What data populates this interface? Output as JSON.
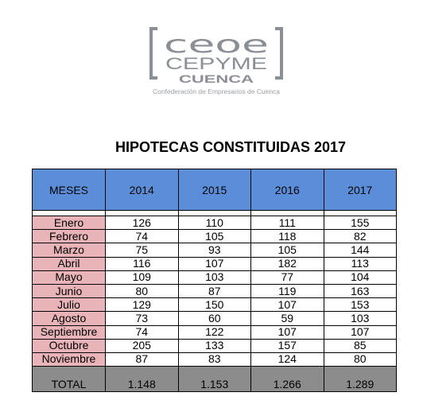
{
  "logo": {
    "brand_top": "CEOE",
    "brand_mid": "CEPYME",
    "brand_bottom": "CUENCA",
    "tagline": "Confederación de Empresarios de Cuenca",
    "color": "#8a8f96"
  },
  "title": "HIPOTECAS CONSTITUIDAS 2017",
  "table": {
    "headers": [
      "MESES",
      "2014",
      "2015",
      "2016",
      "2017"
    ],
    "rows": [
      {
        "month": "Enero",
        "values": [
          "126",
          "110",
          "111",
          "155"
        ]
      },
      {
        "month": "Febrero",
        "values": [
          "74",
          "105",
          "118",
          "82"
        ]
      },
      {
        "month": "Marzo",
        "values": [
          "75",
          "93",
          "105",
          "144"
        ]
      },
      {
        "month": "Abril",
        "values": [
          "116",
          "107",
          "182",
          "113"
        ]
      },
      {
        "month": "Mayo",
        "values": [
          "109",
          "103",
          "77",
          "104"
        ]
      },
      {
        "month": "Junio",
        "values": [
          "80",
          "87",
          "119",
          "163"
        ]
      },
      {
        "month": "Julio",
        "values": [
          "129",
          "150",
          "107",
          "153"
        ]
      },
      {
        "month": "Agosto",
        "values": [
          "73",
          "60",
          "59",
          "103"
        ]
      },
      {
        "month": "Septiembre",
        "values": [
          "74",
          "122",
          "107",
          "107"
        ]
      },
      {
        "month": "Octubre",
        "values": [
          "205",
          "133",
          "157",
          "85"
        ]
      },
      {
        "month": "Noviembre",
        "values": [
          "87",
          "83",
          "124",
          "80"
        ]
      }
    ],
    "total": {
      "label": "TOTAL",
      "values": [
        "1.148",
        "1.153",
        "1.266",
        "1.289"
      ]
    }
  }
}
